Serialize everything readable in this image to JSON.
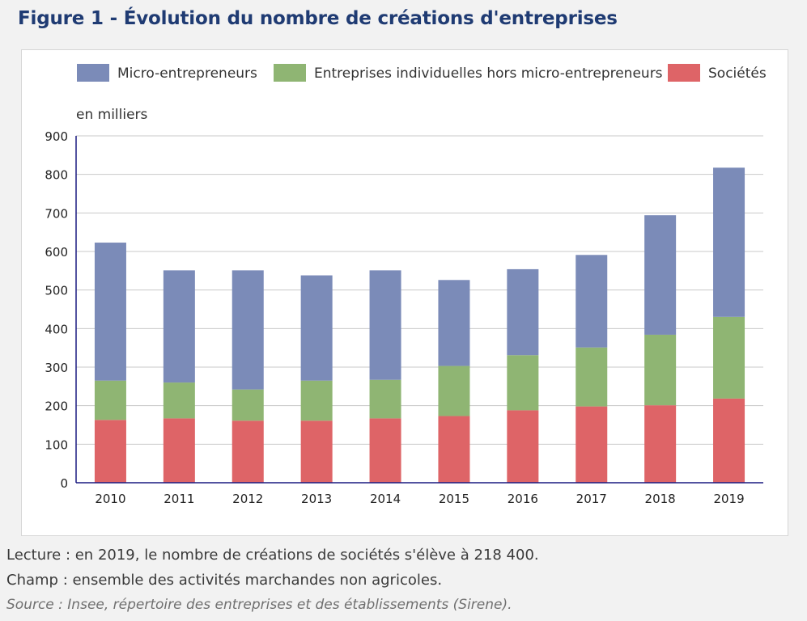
{
  "figure": {
    "title": "Figure 1 - Évolution du nombre de créations d'entreprises"
  },
  "notes": {
    "lecture": "Lecture : en 2019, le nombre de créations de sociétés s'élève à 218 400.",
    "champ": "Champ : ensemble des activités marchandes non agricoles.",
    "source": "Source : Insee, répertoire des entreprises et des établissements (Sirene)."
  },
  "colors": {
    "micro": "#7b8bb8",
    "individuelles": "#8fb573",
    "societes": "#de6467",
    "axis": "#1a1a80",
    "grid": "#c8c8c8"
  },
  "chart_data": {
    "type": "bar",
    "stacked": true,
    "title": "",
    "ylabel": "en milliers",
    "xlabel": "",
    "ylim": [
      0,
      900
    ],
    "yticks": [
      0,
      100,
      200,
      300,
      400,
      500,
      600,
      700,
      800,
      900
    ],
    "grid": true,
    "legend_position": "top",
    "categories": [
      "2010",
      "2011",
      "2012",
      "2013",
      "2014",
      "2015",
      "2016",
      "2017",
      "2018",
      "2019"
    ],
    "series": [
      {
        "name": "Sociétés",
        "color": "#de6467",
        "values": [
          163,
          167,
          161,
          161,
          167,
          173,
          188,
          198,
          201,
          218.4
        ]
      },
      {
        "name": "Entreprises individuelles hors micro-entrepreneurs",
        "color": "#8fb573",
        "values": [
          102,
          93,
          81,
          104,
          100,
          130,
          143,
          153,
          183,
          212
        ]
      },
      {
        "name": "Micro-entrepreneurs",
        "color": "#7b8bb8",
        "values": [
          358,
          291,
          309,
          273,
          284,
          223,
          223,
          240,
          310,
          387
        ]
      }
    ],
    "legend_order": [
      "Micro-entrepreneurs",
      "Entreprises individuelles hors micro-entrepreneurs",
      "Sociétés"
    ]
  }
}
